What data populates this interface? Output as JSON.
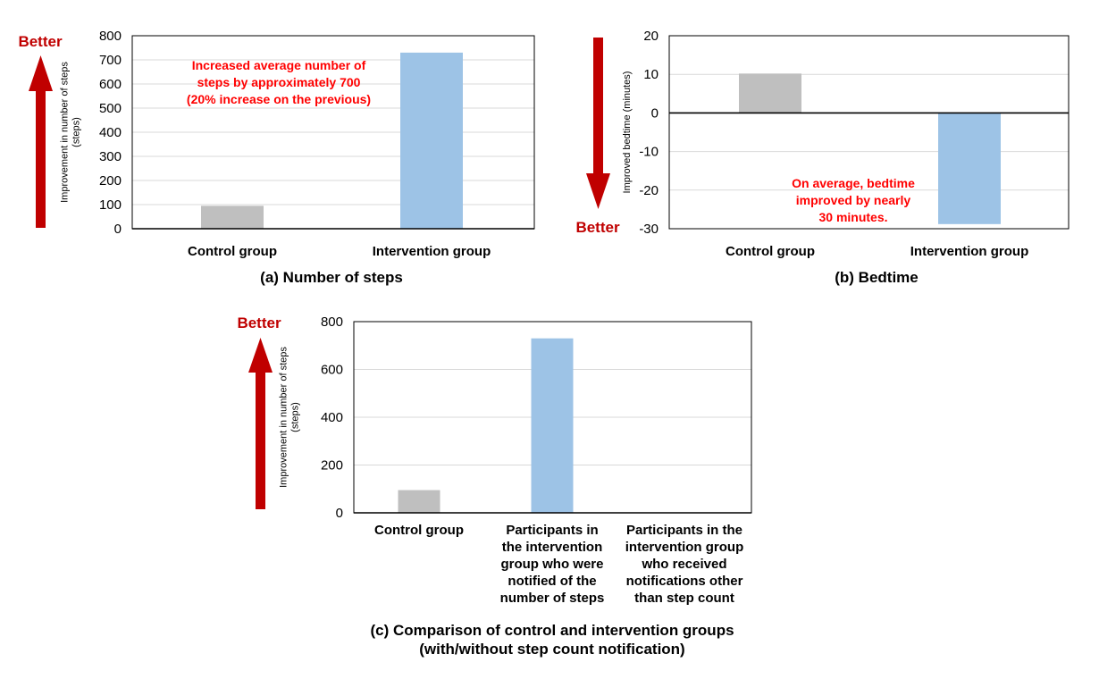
{
  "colors": {
    "control": "#bfbfbf",
    "intervention": "#9dc3e6",
    "accent": "#c00000",
    "annotation": "#ff0000",
    "grid": "#d9d9d9",
    "axis": "#000000"
  },
  "better_label": "Better",
  "chart_data": [
    {
      "id": "a",
      "type": "bar",
      "title": "(a) Number of steps",
      "ylabel": [
        "Improvement  in number of steps",
        "(steps)"
      ],
      "xlabel": "",
      "categories": [
        [
          "Control group"
        ],
        [
          "Intervention group"
        ]
      ],
      "values": [
        95,
        730
      ],
      "ylim": [
        0,
        800
      ],
      "yticks": [
        0,
        100,
        200,
        300,
        400,
        500,
        600,
        700,
        800
      ],
      "grid": true,
      "better_direction": "up",
      "annotation": [
        "Increased average number of",
        "steps by approximately 700",
        "(20% increase on the previous)"
      ]
    },
    {
      "id": "b",
      "type": "bar",
      "title": "(b) Bedtime",
      "ylabel": [
        "Improved  bedtime  (minutes)"
      ],
      "xlabel": "",
      "categories": [
        [
          "Control group"
        ],
        [
          "Intervention group"
        ]
      ],
      "values": [
        10.2,
        -28.8
      ],
      "ylim": [
        -30,
        20
      ],
      "yticks": [
        -30,
        -20,
        -10,
        0,
        10,
        20
      ],
      "grid": true,
      "better_direction": "down",
      "annotation": [
        "On average, bedtime",
        "improved by nearly",
        "30 minutes."
      ]
    },
    {
      "id": "c",
      "type": "bar",
      "title": [
        "(c) Comparison of control and intervention groups",
        "(with/without step count notification)"
      ],
      "ylabel": [
        "Improvement  in number of steps",
        "(steps)"
      ],
      "xlabel": "",
      "categories": [
        [
          "Control group"
        ],
        [
          "Participants in",
          "the intervention",
          "group who were",
          "notified of the",
          "number of steps"
        ],
        [
          "Participants in the",
          "intervention group",
          "who received",
          "notifications other",
          "than step count"
        ]
      ],
      "values": [
        95,
        730,
        0
      ],
      "ylim": [
        0,
        800
      ],
      "yticks": [
        0,
        200,
        400,
        600,
        800
      ],
      "grid": true,
      "better_direction": "up",
      "annotation": []
    }
  ]
}
